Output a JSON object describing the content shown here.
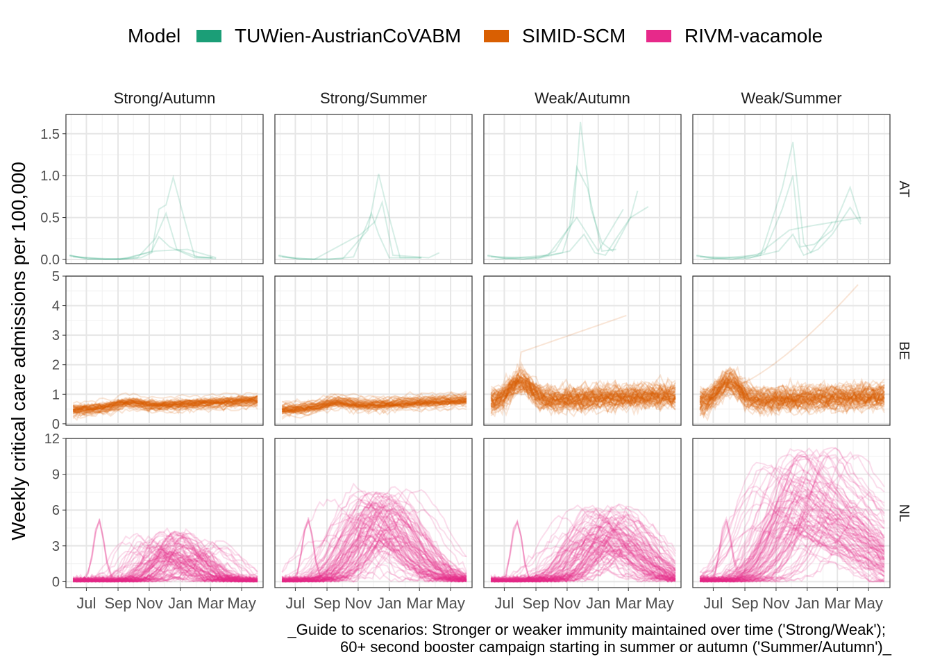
{
  "chart_data": {
    "type": "line",
    "ylabel": "Weekly critical care admissions per 100,000",
    "legend": {
      "title": "Model",
      "position": "top",
      "items": [
        {
          "name": "TUWien-AustrianCoVABM",
          "color": "#1B9E77"
        },
        {
          "name": "SIMID-SCM",
          "color": "#D95F02"
        },
        {
          "name": "RIVM-vacamole",
          "color": "#E7298A"
        }
      ]
    },
    "columns": [
      "Strong/Autumn",
      "Strong/Summer",
      "Weak/Autumn",
      "Weak/Summer"
    ],
    "rows": [
      "AT",
      "BE",
      "NL"
    ],
    "x_ticks": [
      "Jul",
      "Sep",
      "Nov",
      "Jan",
      "Mar",
      "May"
    ],
    "x_domain": [
      "2022-05-22",
      "2023-06-12"
    ],
    "y_axes": {
      "AT": {
        "ylim": [
          -0.05,
          1.73
        ],
        "ticks": [
          "0.0",
          "0.5",
          "1.0",
          "1.5"
        ],
        "tick_values": [
          0,
          0.5,
          1,
          1.5
        ]
      },
      "BE": {
        "ylim": [
          -0.05,
          5.0
        ],
        "ticks": [
          "0",
          "1",
          "2",
          "3",
          "4",
          "5"
        ],
        "tick_values": [
          0,
          1,
          2,
          3,
          4,
          5
        ]
      },
      "NL": {
        "ylim": [
          -0.5,
          12.0
        ],
        "ticks": [
          "0",
          "3",
          "6",
          "9",
          "12"
        ],
        "tick_values": [
          0,
          3,
          6,
          9,
          12
        ]
      }
    },
    "panels": {
      "AT": {
        "Strong/Autumn": [
          [
            [
              "2022-05-29",
              0.05
            ],
            [
              "2022-07-03",
              0.01
            ],
            [
              "2022-09-04",
              0.0
            ],
            [
              "2022-10-16",
              0.02
            ],
            [
              "2022-11-06",
              0.08
            ],
            [
              "2022-11-20",
              0.6
            ],
            [
              "2022-12-04",
              0.65
            ],
            [
              "2022-12-18",
              0.98
            ],
            [
              "2023-01-08",
              0.5
            ],
            [
              "2023-01-29",
              0.03
            ],
            [
              "2023-03-05",
              0.02
            ]
          ],
          [
            [
              "2022-05-29",
              0.05
            ],
            [
              "2022-07-03",
              0.0
            ],
            [
              "2022-09-18",
              0.01
            ],
            [
              "2022-11-06",
              0.1
            ],
            [
              "2022-11-20",
              0.27
            ],
            [
              "2022-12-11",
              0.15
            ],
            [
              "2023-01-29",
              0.02
            ],
            [
              "2023-03-12",
              0.01
            ]
          ],
          [
            [
              "2022-05-29",
              0.04
            ],
            [
              "2022-08-07",
              0.0
            ],
            [
              "2022-10-09",
              0.02
            ],
            [
              "2022-11-13",
              0.25
            ],
            [
              "2022-12-04",
              0.55
            ],
            [
              "2022-12-25",
              0.12
            ],
            [
              "2023-02-05",
              0.03
            ],
            [
              "2023-03-05",
              0.02
            ]
          ],
          [
            [
              "2022-06-05",
              0.03
            ],
            [
              "2022-09-04",
              0.0
            ],
            [
              "2022-11-13",
              0.1
            ],
            [
              "2023-01-15",
              0.12
            ],
            [
              "2023-03-12",
              0.02
            ]
          ]
        ],
        "Strong/Summer": [
          [
            [
              "2022-05-29",
              0.05
            ],
            [
              "2022-07-03",
              0.01
            ],
            [
              "2022-09-04",
              0.0
            ],
            [
              "2022-10-23",
              0.03
            ],
            [
              "2022-11-27",
              0.55
            ],
            [
              "2022-12-11",
              0.3
            ],
            [
              "2023-01-01",
              0.02
            ],
            [
              "2023-03-05",
              0.02
            ]
          ],
          [
            [
              "2022-05-29",
              0.04
            ],
            [
              "2022-07-10",
              0.0
            ],
            [
              "2022-10-02",
              0.01
            ],
            [
              "2022-11-20",
              0.35
            ],
            [
              "2022-12-11",
              1.02
            ],
            [
              "2023-01-01",
              0.5
            ],
            [
              "2023-01-22",
              0.02
            ],
            [
              "2023-03-05",
              0.02
            ]
          ],
          [
            [
              "2022-06-05",
              0.03
            ],
            [
              "2022-08-07",
              0.0
            ],
            [
              "2022-11-06",
              0.3
            ],
            [
              "2022-12-04",
              0.45
            ],
            [
              "2022-12-18",
              0.68
            ],
            [
              "2023-01-08",
              0.05
            ],
            [
              "2023-03-19",
              0.02
            ],
            [
              "2023-04-09",
              0.08
            ]
          ]
        ],
        "Weak/Autumn": [
          [
            [
              "2022-05-29",
              0.05
            ],
            [
              "2022-07-03",
              0.01
            ],
            [
              "2022-09-04",
              0.01
            ],
            [
              "2022-10-09",
              0.1
            ],
            [
              "2022-11-06",
              0.4
            ],
            [
              "2022-11-20",
              1.1
            ],
            [
              "2022-12-11",
              0.85
            ],
            [
              "2023-01-08",
              0.1
            ],
            [
              "2023-02-05",
              0.12
            ]
          ],
          [
            [
              "2022-05-29",
              0.04
            ],
            [
              "2022-08-07",
              0.0
            ],
            [
              "2022-10-23",
              0.08
            ],
            [
              "2022-11-13",
              0.5
            ],
            [
              "2022-11-27",
              1.64
            ],
            [
              "2022-12-18",
              0.6
            ],
            [
              "2023-01-08",
              0.2
            ],
            [
              "2023-01-29",
              0.1
            ],
            [
              "2023-03-05",
              0.5
            ],
            [
              "2023-03-19",
              0.82
            ]
          ],
          [
            [
              "2022-06-05",
              0.03
            ],
            [
              "2022-09-11",
              0.02
            ],
            [
              "2022-11-06",
              0.1
            ],
            [
              "2022-12-04",
              0.3
            ],
            [
              "2022-12-25",
              0.08
            ],
            [
              "2023-01-15",
              0.05
            ],
            [
              "2023-02-05",
              0.25
            ],
            [
              "2023-03-05",
              0.5
            ],
            [
              "2023-04-09",
              0.63
            ]
          ],
          [
            [
              "2022-06-12",
              0.0
            ],
            [
              "2022-09-25",
              0.05
            ],
            [
              "2022-11-20",
              0.5
            ],
            [
              "2023-01-01",
              0.1
            ],
            [
              "2023-02-19",
              0.6
            ]
          ]
        ],
        "Weak/Summer": [
          [
            [
              "2022-05-29",
              0.05
            ],
            [
              "2022-07-03",
              0.01
            ],
            [
              "2022-09-04",
              0.01
            ],
            [
              "2022-10-02",
              0.05
            ],
            [
              "2022-11-13",
              0.85
            ],
            [
              "2022-12-04",
              1.4
            ],
            [
              "2022-12-25",
              0.2
            ],
            [
              "2023-01-08",
              0.08
            ],
            [
              "2023-02-19",
              0.45
            ]
          ],
          [
            [
              "2022-05-29",
              0.04
            ],
            [
              "2022-08-07",
              0.0
            ],
            [
              "2022-10-09",
              0.08
            ],
            [
              "2022-11-13",
              0.6
            ],
            [
              "2022-12-04",
              1.0
            ],
            [
              "2022-12-18",
              0.15
            ],
            [
              "2023-01-15",
              0.18
            ],
            [
              "2023-02-19",
              0.35
            ],
            [
              "2023-03-26",
              0.86
            ],
            [
              "2023-04-16",
              0.45
            ]
          ],
          [
            [
              "2022-06-05",
              0.03
            ],
            [
              "2022-09-11",
              0.02
            ],
            [
              "2022-11-06",
              0.1
            ],
            [
              "2022-12-04",
              0.3
            ],
            [
              "2022-12-25",
              0.05
            ],
            [
              "2023-01-22",
              0.12
            ],
            [
              "2023-02-19",
              0.3
            ],
            [
              "2023-03-26",
              0.62
            ],
            [
              "2023-04-16",
              0.42
            ]
          ],
          [
            [
              "2022-06-12",
              0.0
            ],
            [
              "2022-09-25",
              0.05
            ],
            [
              "2022-11-27",
              0.35
            ],
            [
              "2023-01-08",
              0.4
            ],
            [
              "2023-04-16",
              0.5
            ]
          ]
        ]
      }
    }
  },
  "footer": {
    "line1": "_Guide to scenarios: Stronger or weaker immunity maintained over time ('Strong/Weak');",
    "line2": "60+ second booster campaign starting in summer or autumn ('Summer/Autumn')_"
  }
}
